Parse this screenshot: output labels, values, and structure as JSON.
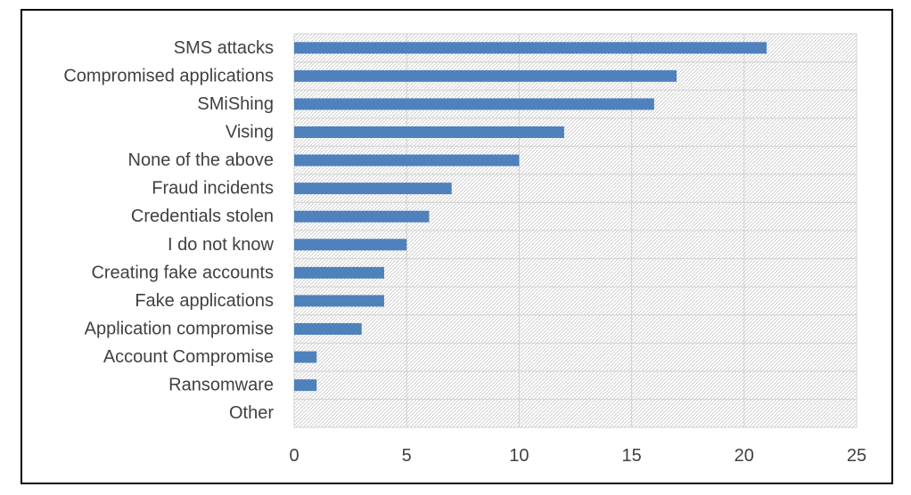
{
  "chart_data": {
    "type": "bar",
    "orientation": "horizontal",
    "categories": [
      "SMS attacks",
      "Compromised applications",
      "SMiShing",
      "Vising",
      "None of the above",
      "Fraud incidents",
      "Credentials stolen",
      "I do not know",
      "Creating fake accounts",
      "Fake applications",
      "Application compromise",
      "Account Compromise",
      "Ransomware",
      "Other"
    ],
    "values": [
      21,
      17,
      16,
      12,
      10,
      7,
      6,
      5,
      4,
      4,
      3,
      1,
      1,
      0
    ],
    "xlim": [
      0,
      25
    ],
    "xticks": [
      "0",
      "5",
      "10",
      "15",
      "20",
      "25"
    ],
    "grid": true,
    "title": "",
    "xlabel": "",
    "ylabel": "",
    "colors": {
      "bar": "#4f81bd",
      "hatch": "#c8c8c8",
      "grid": "#d0d0d0",
      "text": "#404040"
    }
  }
}
